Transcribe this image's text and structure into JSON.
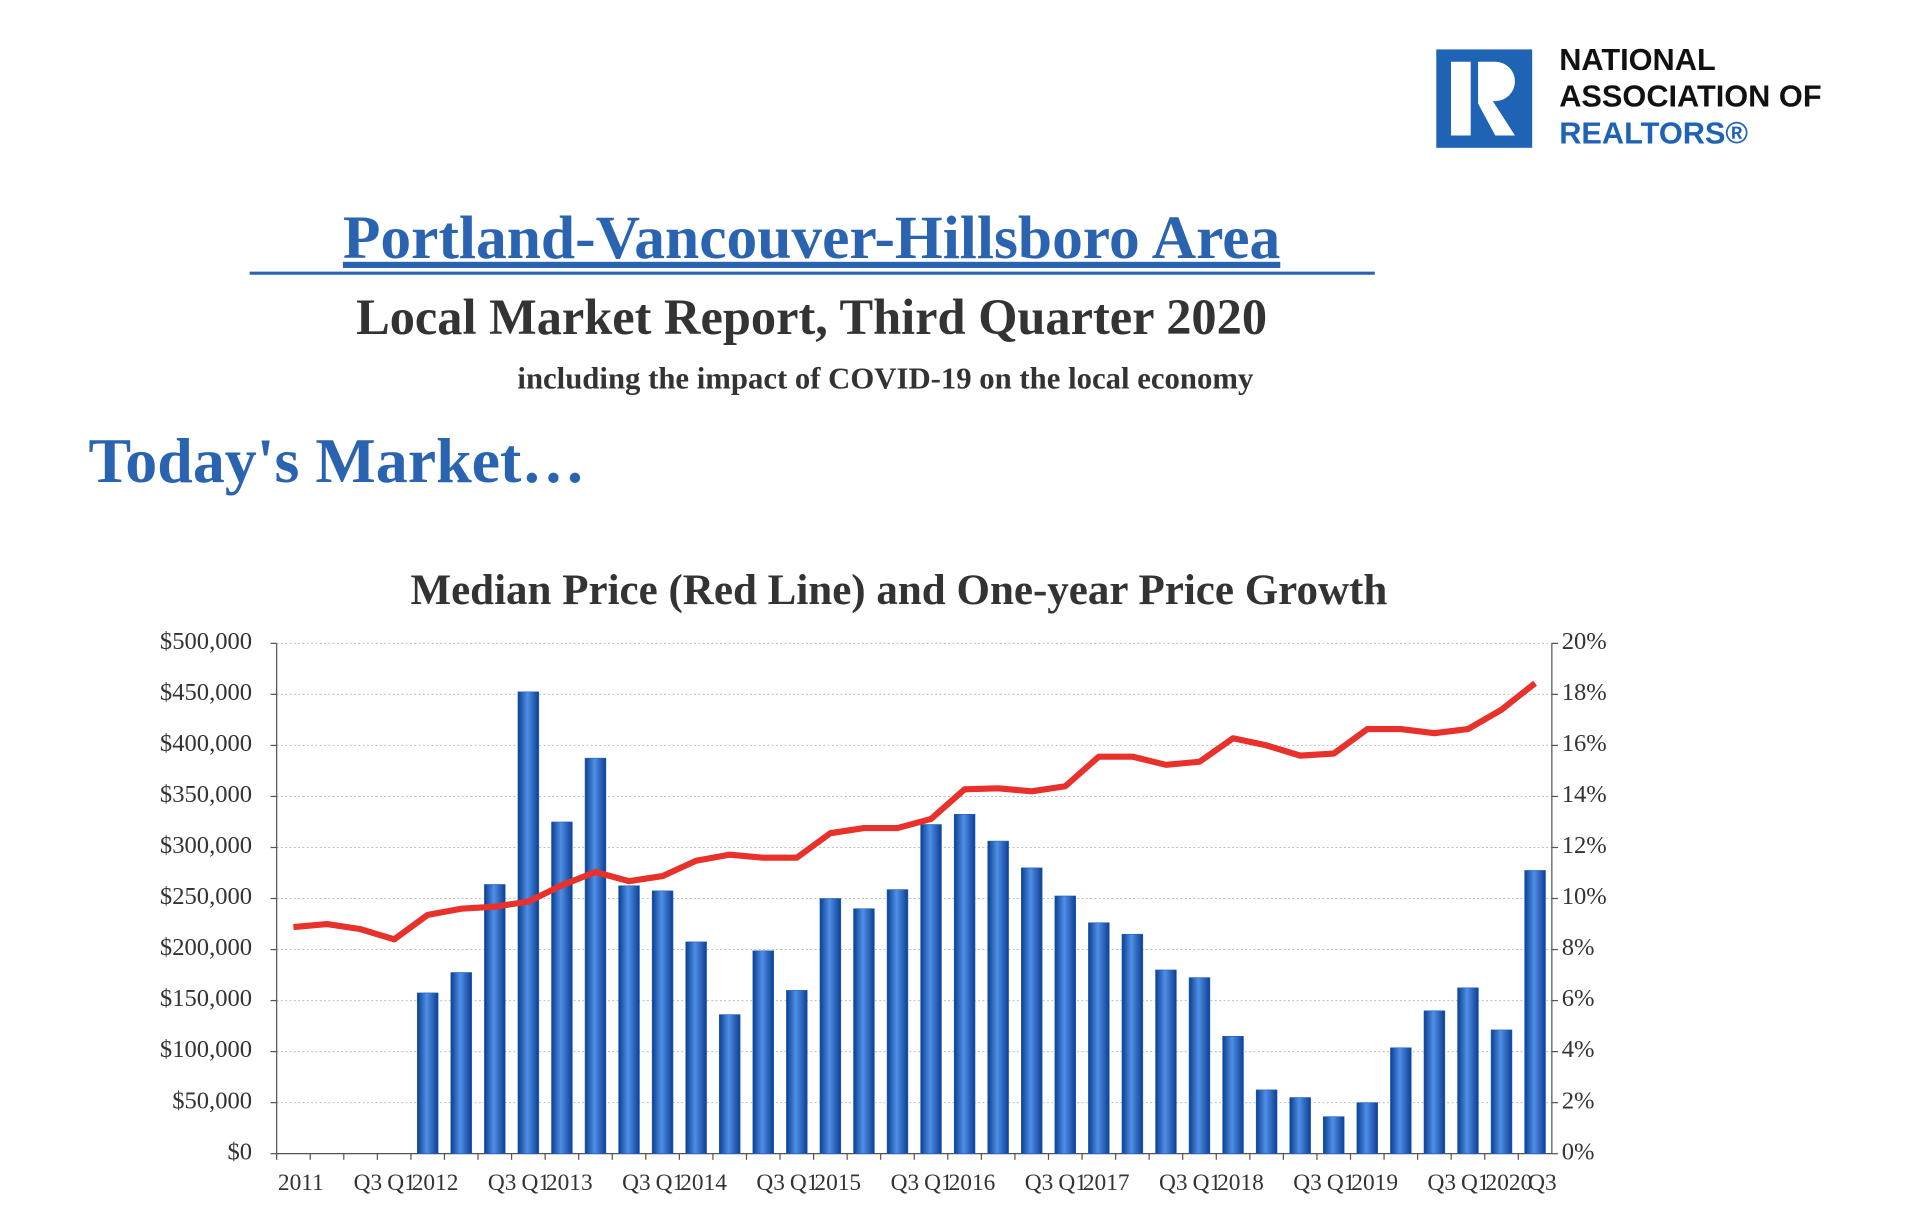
{
  "logo": {
    "lines": [
      "NATIONAL",
      "ASSOCIATION OF",
      "REALTORS®"
    ]
  },
  "header": {
    "title": "Portland-Vancouver-Hillsboro Area",
    "subtitle": "Local Market Report, Third Quarter 2020",
    "note": "including the impact of COVID-19 on the local economy",
    "section": "Today's Market…"
  },
  "chart_data": {
    "type": "combo",
    "title": "Median Price (Red Line) and One-year Price Growth",
    "categories": [
      "2011",
      null,
      "Q3",
      "Q1",
      "2012",
      null,
      "Q3",
      "Q1",
      "2013",
      null,
      "Q3",
      "Q1",
      "2014",
      null,
      "Q3",
      "Q1",
      "2015",
      null,
      "Q3",
      "Q1",
      "2016",
      null,
      "Q3",
      "Q1",
      "2017",
      null,
      "Q3",
      "Q1",
      "2018",
      null,
      "Q3",
      "Q1",
      "2019",
      null,
      "Q3",
      "Q1",
      "2020",
      "Q3"
    ],
    "series": [
      {
        "type": "bar",
        "axis": "y2",
        "color": "#1f5fbf",
        "values": [
          null,
          null,
          null,
          null,
          6.3,
          7.1,
          10.55,
          18.1,
          13.0,
          15.5,
          10.5,
          10.3,
          8.3,
          5.45,
          7.95,
          6.4,
          10.0,
          9.6,
          10.35,
          12.9,
          13.3,
          12.25,
          11.2,
          10.1,
          9.05,
          8.6,
          7.2,
          6.9,
          4.6,
          2.5,
          2.2,
          1.45,
          2.0,
          4.15,
          5.6,
          6.5,
          4.85,
          11.1
        ]
      },
      {
        "type": "line",
        "axis": "y",
        "color": "#e8312a",
        "values": [
          222000,
          225000,
          220000,
          210000,
          234000,
          240000,
          242000,
          247000,
          263000,
          276000,
          267000,
          272000,
          287000,
          293000,
          290000,
          290000,
          314000,
          319000,
          319000,
          328000,
          357000,
          358000,
          355000,
          360000,
          389000,
          389000,
          381000,
          384000,
          407000,
          400000,
          390000,
          392000,
          416000,
          416000,
          412000,
          416000,
          435000,
          461000
        ]
      }
    ],
    "ylim": [
      0,
      500000
    ],
    "yticks": [
      {
        "value": 0,
        "label": "$0"
      },
      {
        "value": 50000,
        "label": "$50,000"
      },
      {
        "value": 100000,
        "label": "$100,000"
      },
      {
        "value": 150000,
        "label": "$150,000"
      },
      {
        "value": 200000,
        "label": "$200,000"
      },
      {
        "value": 250000,
        "label": "$250,000"
      },
      {
        "value": 300000,
        "label": "$300,000"
      },
      {
        "value": 350000,
        "label": "$350,000"
      },
      {
        "value": 400000,
        "label": "$400,000"
      },
      {
        "value": 450000,
        "label": "$450,000"
      },
      {
        "value": 500000,
        "label": "$500,000"
      }
    ],
    "y2lim": [
      0,
      20
    ],
    "y2ticks": [
      {
        "value": 0,
        "label": "0%"
      },
      {
        "value": 2,
        "label": "2%"
      },
      {
        "value": 4,
        "label": "4%"
      },
      {
        "value": 6,
        "label": "6%"
      },
      {
        "value": 8,
        "label": "8%"
      },
      {
        "value": 10,
        "label": "10%"
      },
      {
        "value": 12,
        "label": "12%"
      },
      {
        "value": 14,
        "label": "14%"
      },
      {
        "value": 16,
        "label": "16%"
      },
      {
        "value": 18,
        "label": "18%"
      },
      {
        "value": 20,
        "label": "20%"
      }
    ],
    "grid": true
  }
}
